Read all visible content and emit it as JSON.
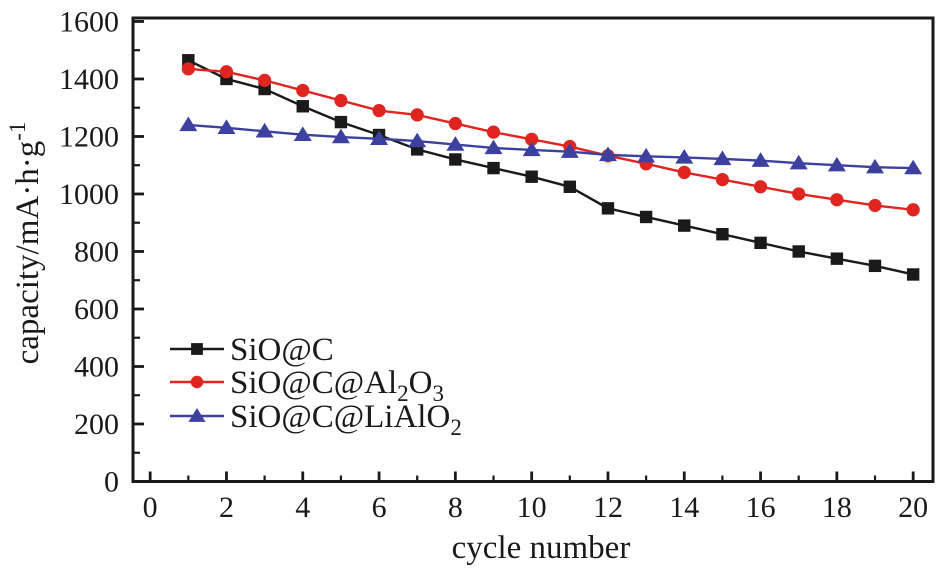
{
  "figure": {
    "background": "#ffffff",
    "frame_color": "#1a1a1a"
  },
  "chart_data": {
    "type": "line",
    "title": "",
    "xlabel": "cycle number",
    "ylabel": "capacity/mA·h·g⁻¹",
    "ylabel_parts": [
      [
        "capacity/mA·h·g",
        "n"
      ],
      [
        "-1",
        "sup"
      ]
    ],
    "xlim": [
      -0.45,
      20.52
    ],
    "ylim": [
      0,
      1612
    ],
    "x_major_ticks": [
      0,
      2,
      4,
      6,
      8,
      10,
      12,
      14,
      16,
      18,
      20
    ],
    "x_minor_ticks": [
      1,
      3,
      5,
      7,
      9,
      11,
      13,
      15,
      17,
      19
    ],
    "y_major_ticks": [
      0,
      200,
      400,
      600,
      800,
      1000,
      1200,
      1400,
      1600
    ],
    "y_minor_ticks": [
      100,
      300,
      500,
      700,
      900,
      1100,
      1300,
      1500
    ],
    "grid": false,
    "legend_position": "inside-left-lower",
    "x": [
      1,
      2,
      3,
      4,
      5,
      6,
      7,
      8,
      9,
      10,
      11,
      12,
      13,
      14,
      15,
      16,
      17,
      18,
      19,
      20
    ],
    "series": [
      {
        "name": "SiO@C",
        "label_parts": [
          [
            "SiO@C",
            "n"
          ]
        ],
        "color": "#1a1a1a",
        "marker": "square",
        "values": [
          1465,
          1400,
          1365,
          1305,
          1250,
          1205,
          1155,
          1120,
          1090,
          1060,
          1025,
          950,
          920,
          890,
          860,
          830,
          800,
          775,
          750,
          720
        ]
      },
      {
        "name": "SiO@C@Al₂O₃",
        "label_parts": [
          [
            "SiO@C@Al",
            "n"
          ],
          [
            "2",
            "sub"
          ],
          [
            "O",
            "n"
          ],
          [
            "3",
            "sub"
          ]
        ],
        "color": "#e02420",
        "marker": "circle",
        "values": [
          1435,
          1425,
          1395,
          1360,
          1325,
          1290,
          1275,
          1245,
          1215,
          1190,
          1165,
          1133,
          1105,
          1075,
          1050,
          1025,
          1000,
          980,
          960,
          945
        ]
      },
      {
        "name": "SiO@C@LiAlO₂",
        "label_parts": [
          [
            "SiO@C@LiAlO",
            "n"
          ],
          [
            "2",
            "sub"
          ]
        ],
        "color": "#3c41a0",
        "marker": "triangle",
        "values": [
          1240,
          1230,
          1218,
          1206,
          1198,
          1192,
          1184,
          1172,
          1160,
          1153,
          1147,
          1136,
          1131,
          1127,
          1122,
          1116,
          1107,
          1100,
          1093,
          1090
        ]
      }
    ]
  }
}
